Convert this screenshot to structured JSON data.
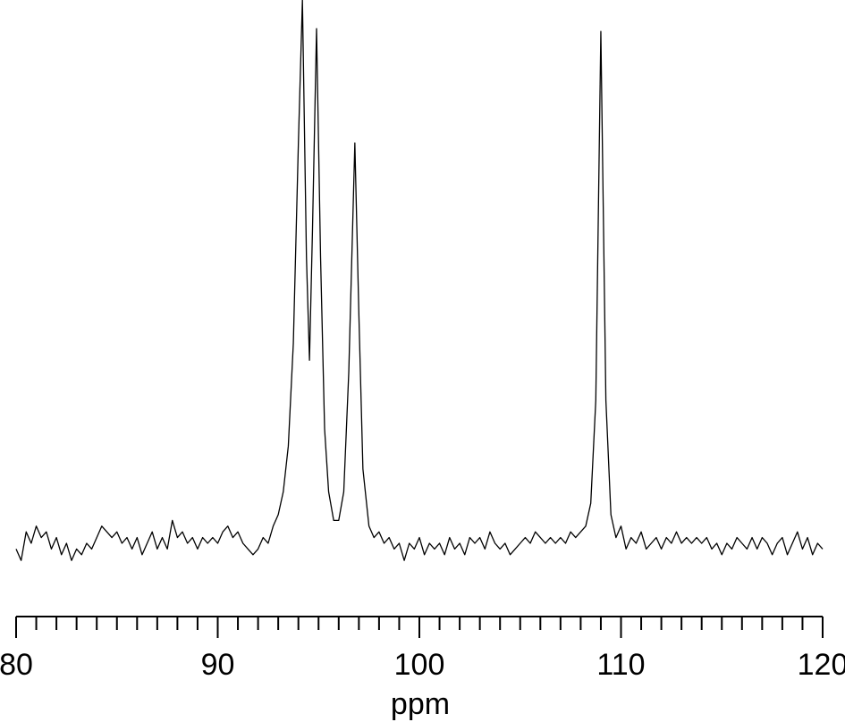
{
  "chart_data": {
    "type": "line",
    "x_label": "ppm",
    "x": [
      80.0,
      80.25,
      80.5,
      80.75,
      81.0,
      81.25,
      81.5,
      81.75,
      82.0,
      82.25,
      82.5,
      82.75,
      83.0,
      83.25,
      83.5,
      83.75,
      84.0,
      84.25,
      84.5,
      84.75,
      85.0,
      85.25,
      85.5,
      85.75,
      86.0,
      86.25,
      86.5,
      86.75,
      87.0,
      87.25,
      87.5,
      87.75,
      88.0,
      88.25,
      88.5,
      88.75,
      89.0,
      89.25,
      89.5,
      89.75,
      90.0,
      90.25,
      90.5,
      90.75,
      91.0,
      91.25,
      91.5,
      91.75,
      92.0,
      92.25,
      92.5,
      92.75,
      93.0,
      93.25,
      93.5,
      93.75,
      94.0,
      94.2,
      94.4,
      94.55,
      94.7,
      94.9,
      95.1,
      95.3,
      95.5,
      95.75,
      96.0,
      96.25,
      96.5,
      96.8,
      97.0,
      97.2,
      97.5,
      97.75,
      98.0,
      98.25,
      98.5,
      98.75,
      99.0,
      99.25,
      99.5,
      99.75,
      100.0,
      100.25,
      100.5,
      100.75,
      101.0,
      101.25,
      101.5,
      101.75,
      102.0,
      102.25,
      102.5,
      102.75,
      103.0,
      103.25,
      103.5,
      103.75,
      104.0,
      104.25,
      104.5,
      104.75,
      105.0,
      105.25,
      105.5,
      105.75,
      106.0,
      106.25,
      106.5,
      106.75,
      107.0,
      107.25,
      107.5,
      107.75,
      108.0,
      108.25,
      108.5,
      108.75,
      109.0,
      109.25,
      109.5,
      109.75,
      110.0,
      110.25,
      110.5,
      110.75,
      111.0,
      111.25,
      111.5,
      111.75,
      112.0,
      112.25,
      112.5,
      112.75,
      113.0,
      113.25,
      113.5,
      113.75,
      114.0,
      114.25,
      114.5,
      114.75,
      115.0,
      115.25,
      115.5,
      115.75,
      116.0,
      116.25,
      116.5,
      116.75,
      117.0,
      117.25,
      117.5,
      117.75,
      118.0,
      118.25,
      118.5,
      118.75,
      119.0,
      119.25,
      119.5,
      119.75,
      120.0
    ],
    "values": [
      4,
      2,
      7,
      5,
      8,
      6,
      7,
      4,
      6,
      3,
      5,
      2,
      4,
      3,
      5,
      4,
      6,
      8,
      7,
      6,
      7,
      5,
      6,
      4,
      6,
      3,
      5,
      7,
      4,
      6,
      4,
      9,
      6,
      7,
      5,
      6,
      4,
      6,
      5,
      6,
      5,
      7,
      8,
      6,
      7,
      5,
      4,
      3,
      4,
      6,
      5,
      8,
      10,
      14,
      22,
      40,
      75,
      100,
      55,
      37,
      60,
      95,
      55,
      25,
      14,
      9,
      9,
      14,
      35,
      75,
      45,
      18,
      8,
      6,
      7,
      5,
      6,
      4,
      5,
      2,
      5,
      4,
      6,
      3,
      5,
      4,
      5,
      3,
      6,
      4,
      5,
      3,
      6,
      5,
      6,
      4,
      7,
      5,
      4,
      5,
      3,
      4,
      5,
      6,
      5,
      7,
      6,
      5,
      6,
      5,
      6,
      5,
      7,
      6,
      7,
      8,
      12,
      30,
      94.5,
      30,
      10,
      6,
      8,
      4,
      6,
      5,
      7,
      4,
      5,
      6,
      4,
      6,
      5,
      7,
      5,
      6,
      5,
      6,
      5,
      6,
      4,
      5,
      3,
      5,
      4,
      6,
      5,
      4,
      6,
      4,
      6,
      5,
      3,
      5,
      6,
      3,
      5,
      7,
      4,
      6,
      3,
      5,
      4
    ],
    "color": "#000000",
    "xlim": [
      80,
      120
    ],
    "xticks": [
      80,
      90,
      100,
      110,
      120
    ],
    "xminorticks": [
      81,
      82,
      83,
      84,
      85,
      86,
      87,
      88,
      89,
      91,
      92,
      93,
      94,
      95,
      96,
      97,
      98,
      99,
      101,
      102,
      103,
      104,
      105,
      106,
      107,
      108,
      109,
      111,
      112,
      113,
      114,
      115,
      116,
      117,
      118,
      119
    ],
    "ylim": [
      0,
      100
    ]
  }
}
